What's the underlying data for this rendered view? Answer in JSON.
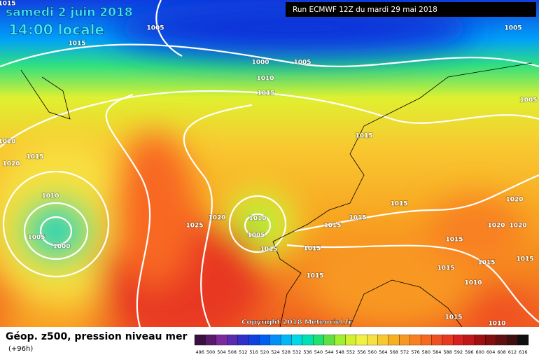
{
  "header": {
    "date": "samedi 2 juin 2018",
    "time": "14:00 locale",
    "run": "Run ECMWF 12Z du mardi 29 mai 2018"
  },
  "copyright": "Copyright 2018 Meteociel.fr",
  "footer": {
    "title": "Géop. z500, pression niveau mer",
    "lead": "(+96h)"
  },
  "isobar_labels": [
    "1015",
    "1005",
    "1015",
    "1005",
    "1000",
    "1005",
    "1010",
    "1015",
    "1005",
    "1015",
    "1020",
    "1015",
    "1020",
    "1010",
    "1015",
    "1020",
    "1020",
    "1010",
    "1015",
    "1015",
    "1025",
    "1005",
    "1000",
    "1005",
    "1020",
    "1020",
    "1015",
    "1015",
    "1015",
    "1015",
    "1015",
    "1015",
    "1015",
    "1010",
    "1015",
    "1010"
  ],
  "legend": {
    "labels": [
      "496",
      "500",
      "504",
      "508",
      "512",
      "516",
      "520",
      "524",
      "528",
      "532",
      "536",
      "540",
      "544",
      "548",
      "552",
      "556",
      "560",
      "564",
      "568",
      "572",
      "576",
      "580",
      "584",
      "588",
      "592",
      "596",
      "600",
      "604",
      "608",
      "612",
      "616"
    ],
    "colors": [
      "#3a1040",
      "#5a1a6a",
      "#7a2a9a",
      "#5a2ab0",
      "#3030c8",
      "#1040e0",
      "#0060f0",
      "#0090f8",
      "#00b8f8",
      "#00d8e8",
      "#00e0b0",
      "#20e070",
      "#60e040",
      "#a0f030",
      "#d0f030",
      "#f0f040",
      "#f8e040",
      "#f8c830",
      "#f8b020",
      "#f89820",
      "#f88020",
      "#f86820",
      "#f05020",
      "#e83820",
      "#d82020",
      "#c01818",
      "#a01010",
      "#801010",
      "#601010",
      "#401010",
      "#101010"
    ]
  }
}
